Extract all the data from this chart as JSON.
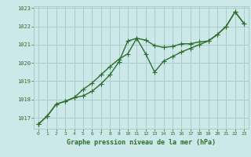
{
  "hours": [
    0,
    1,
    2,
    3,
    4,
    5,
    6,
    7,
    8,
    9,
    10,
    11,
    12,
    13,
    14,
    15,
    16,
    17,
    18,
    19,
    20,
    21,
    22,
    23
  ],
  "series1": [
    1016.65,
    1017.1,
    1017.75,
    1017.9,
    1018.1,
    1018.2,
    1018.45,
    1018.85,
    1019.35,
    1020.05,
    1021.2,
    1021.35,
    1021.25,
    1020.95,
    1020.85,
    1020.9,
    1021.05,
    1021.05,
    1021.15,
    1021.2,
    1021.55,
    1022.0,
    1022.8,
    1022.15
  ],
  "series2": [
    1016.65,
    1017.1,
    1017.75,
    1017.9,
    1018.1,
    1018.55,
    1018.9,
    1019.35,
    1019.8,
    1020.2,
    1020.5,
    1021.35,
    1020.5,
    1019.5,
    1020.1,
    1020.35,
    1020.6,
    1020.8,
    1021.0,
    1021.2,
    1021.55,
    1022.0,
    1022.8,
    1022.15
  ],
  "line_color": "#2d6e2d",
  "bg_color": "#cde8e8",
  "grid_color": "#aacccc",
  "xlabel": "Graphe pression niveau de la mer (hPa)",
  "ylim_min": 1016.4,
  "ylim_max": 1023.1,
  "xlim_min": -0.5,
  "xlim_max": 23.5,
  "yticks": [
    1017,
    1018,
    1019,
    1020,
    1021,
    1022,
    1023
  ],
  "xticks": [
    0,
    1,
    2,
    3,
    4,
    5,
    6,
    7,
    8,
    9,
    10,
    11,
    12,
    13,
    14,
    15,
    16,
    17,
    18,
    19,
    20,
    21,
    22,
    23
  ],
  "markersize": 3,
  "linewidth": 1.0
}
